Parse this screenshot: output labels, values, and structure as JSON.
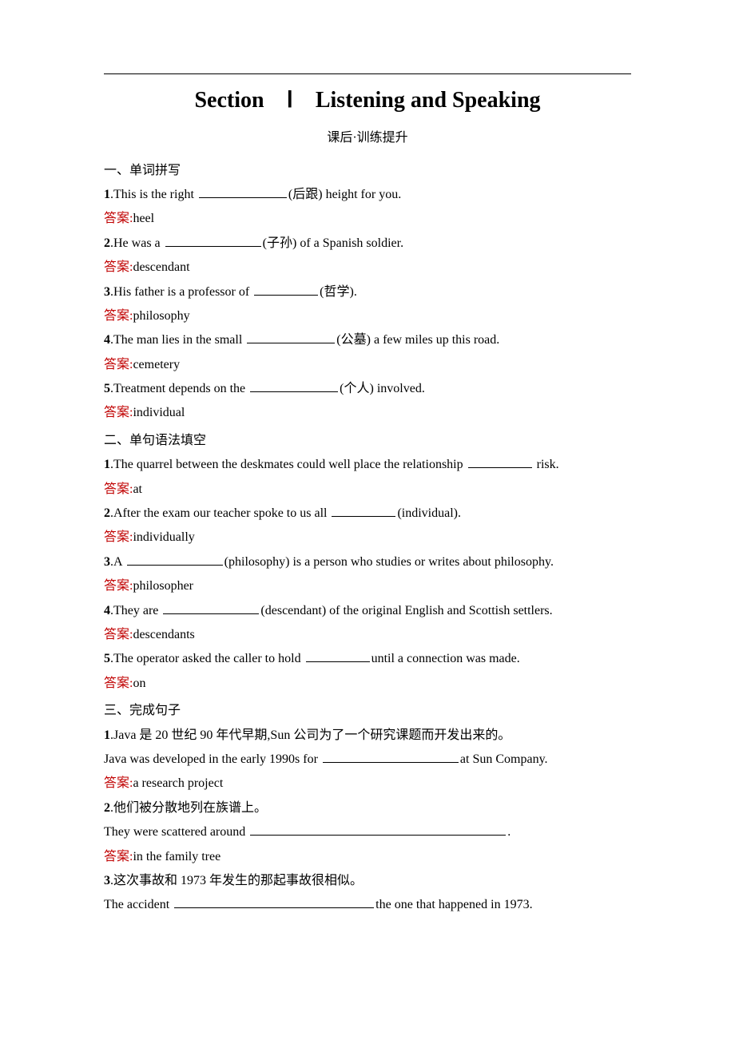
{
  "title": "Section　Ⅰ　Listening and Speaking",
  "subtitle": "课后·训练提升",
  "section1": {
    "heading": "一、单词拼写",
    "items": [
      {
        "num": "1",
        "pre": ".This is the right ",
        "hint": "(后跟)",
        "post": " height for you.",
        "answer": "heel"
      },
      {
        "num": "2",
        "pre": ".He was a ",
        "hint": "(子孙)",
        "post": " of a Spanish soldier.",
        "answer": "descendant"
      },
      {
        "num": "3",
        "pre": ".His father is a professor of ",
        "hint": "(哲学)",
        "post": ".",
        "answer": "philosophy"
      },
      {
        "num": "4",
        "pre": ".The man lies in the small ",
        "hint": "(公墓)",
        "post": " a few miles up this road.",
        "answer": "cemetery"
      },
      {
        "num": "5",
        "pre": ".Treatment depends on the ",
        "hint": "(个人)",
        "post": " involved.",
        "answer": "individual"
      }
    ]
  },
  "section2": {
    "heading": "二、单句语法填空",
    "items": [
      {
        "num": "1",
        "pre": ".The quarrel between the deskmates could well place the relationship ",
        "hint": "",
        "post": " risk.",
        "answer": "at"
      },
      {
        "num": "2",
        "pre": ".After the exam our teacher spoke to us all ",
        "hint": "(individual)",
        "post": ".",
        "answer": "individually"
      },
      {
        "num": "3",
        "pre": ".A ",
        "hint": "(philosophy)",
        "post": " is a person who studies or writes about philosophy.",
        "answer": "philosopher"
      },
      {
        "num": "4",
        "pre": ".They are ",
        "hint": "(descendant)",
        "post": " of the original English and Scottish settlers.",
        "answer": "descendants"
      },
      {
        "num": "5",
        "pre": ".The operator asked the caller to hold ",
        "hint": "",
        "post": "until a connection was made.",
        "answer": "on"
      }
    ]
  },
  "section3": {
    "heading": "三、完成句子",
    "items": [
      {
        "num": "1",
        "cjk": ".Java 是 20 世纪 90 年代早期,Sun 公司为了一个研究课题而开发出来的。",
        "pre": "Java was developed in the early 1990s for ",
        "post": "at Sun Company.",
        "answer": "a research project"
      },
      {
        "num": "2",
        "cjk": ".他们被分散地列在族谱上。",
        "pre": "They were scattered around ",
        "post": ".",
        "answer": "in the family tree"
      },
      {
        "num": "3",
        "cjk": ".这次事故和 1973 年发生的那起事故很相似。",
        "pre": "The accident ",
        "post": "the one that happened in 1973.",
        "answer": ""
      }
    ]
  },
  "answer_label": "答案:"
}
